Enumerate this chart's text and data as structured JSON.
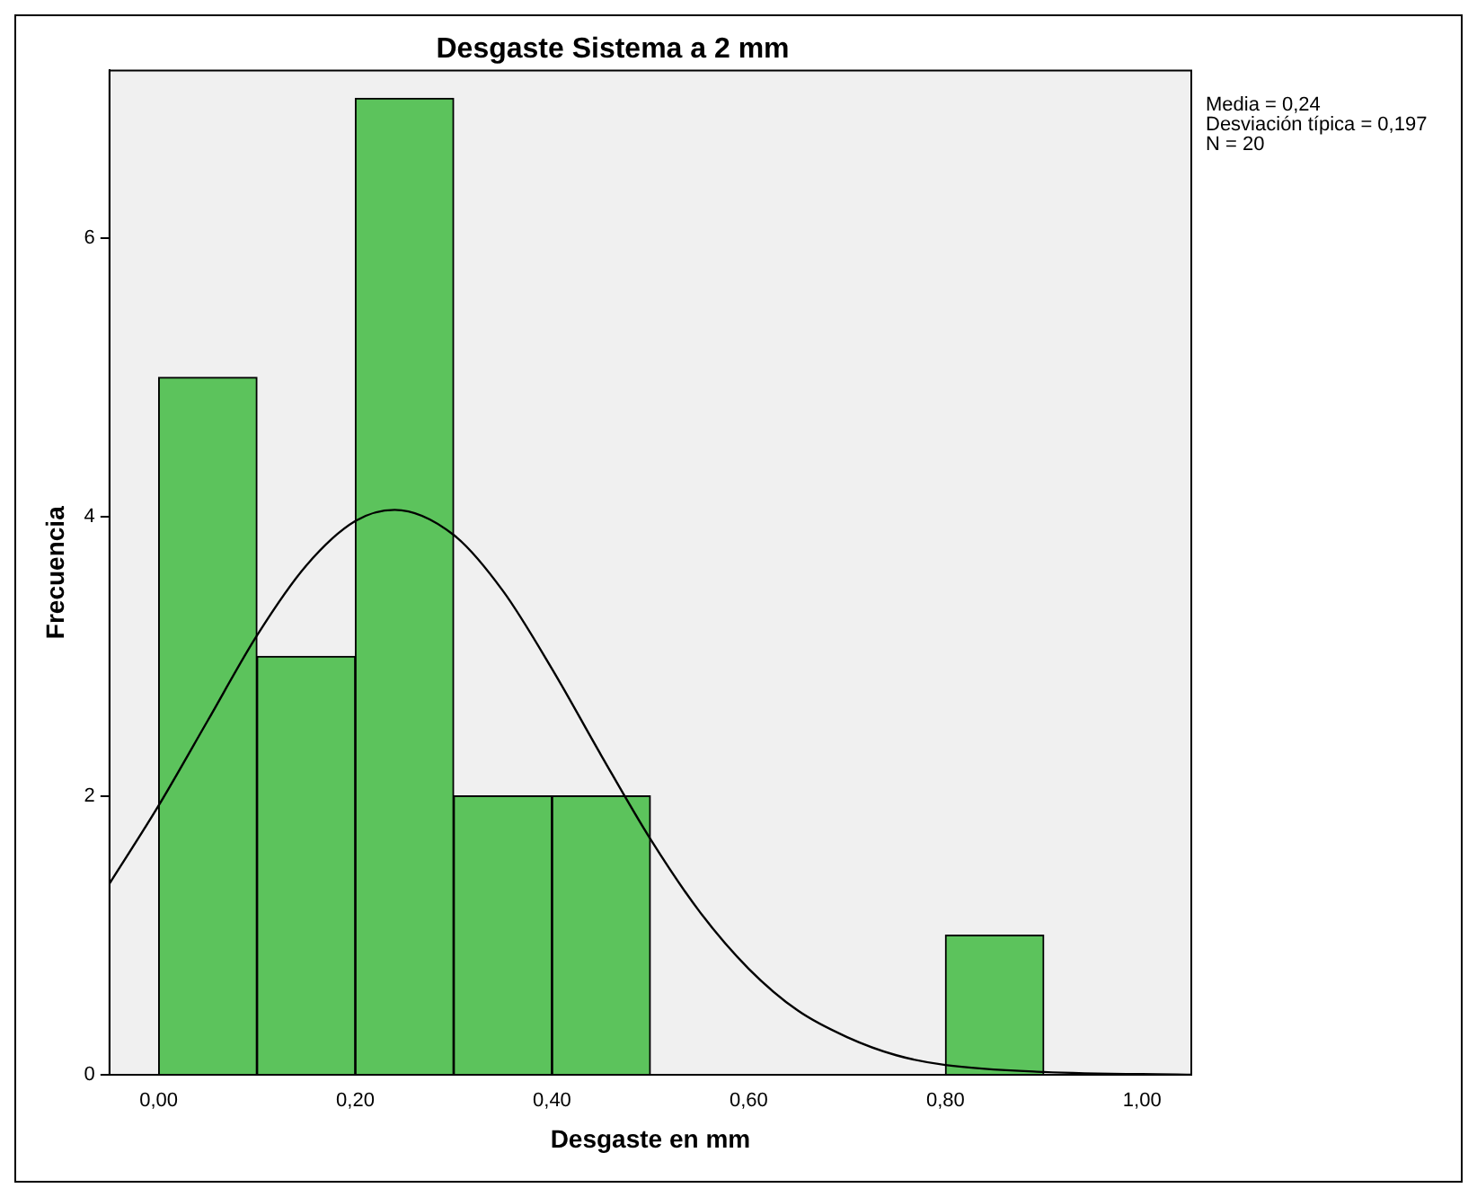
{
  "chart_data": {
    "type": "histogram",
    "title": "Desgaste Sistema a 2 mm",
    "xlabel": "Desgaste en mm",
    "ylabel": "Frecuencia",
    "bins": [
      0,
      0.1,
      0.2,
      0.3,
      0.4,
      0.5,
      0.6,
      0.7,
      0.8,
      0.9
    ],
    "values": [
      5,
      3,
      7,
      2,
      2,
      0,
      0,
      0,
      1
    ],
    "color": "#5cc35c",
    "series": [
      {
        "type": "line",
        "color": "#000000",
        "x": [
          -0.05,
          0,
          0.05,
          0.1,
          0.15,
          0.2,
          0.24,
          0.3,
          0.35,
          0.4,
          0.45,
          0.5,
          0.55,
          0.6,
          0.65,
          0.7,
          0.75,
          0.8,
          0.9,
          1.05
        ],
        "values": [
          1.37,
          1.93,
          2.54,
          3.15,
          3.65,
          3.97,
          4.05,
          3.87,
          3.47,
          2.91,
          2.29,
          1.69,
          1.17,
          0.76,
          0.46,
          0.27,
          0.14,
          0.07,
          0.02,
          0
        ]
      }
    ],
    "xlim": [
      -0.05,
      1.05
    ],
    "xticks": [
      {
        "value": 0,
        "label": "0,00"
      },
      {
        "value": 0.2,
        "label": "0,20"
      },
      {
        "value": 0.4,
        "label": "0,40"
      },
      {
        "value": 0.6,
        "label": "0,60"
      },
      {
        "value": 0.8,
        "label": "0,80"
      },
      {
        "value": 1,
        "label": "1,00"
      }
    ],
    "ylim": [
      0,
      7.2
    ],
    "yticks": [
      0,
      2,
      4,
      6
    ],
    "grid": false,
    "legend": false,
    "marker": "none",
    "annotations": [
      "Media = 0,24",
      "Desviación típica = 0,197",
      "N = 20"
    ]
  }
}
